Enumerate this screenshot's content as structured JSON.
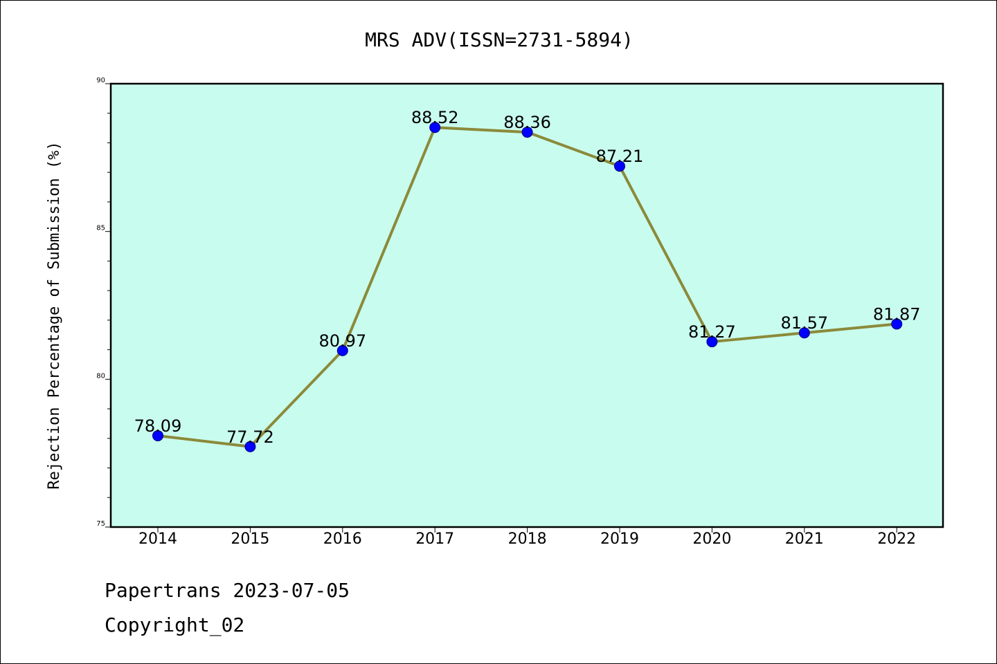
{
  "chart_data": {
    "type": "line",
    "title": "MRS ADV(ISSN=2731-5894)",
    "xlabel": "",
    "ylabel": "Rejection Percentage of Submission (%)",
    "categories": [
      "2014",
      "2015",
      "2016",
      "2017",
      "2018",
      "2019",
      "2020",
      "2021",
      "2022"
    ],
    "series": [
      {
        "values": [
          78.09,
          77.72,
          80.97,
          88.52,
          88.36,
          87.21,
          81.27,
          81.57,
          81.87
        ],
        "data_labels": [
          "78.09",
          "77.72",
          "80.97",
          "88.52",
          "88.36",
          "87.21",
          "81.27",
          "81.57",
          "81.87"
        ]
      }
    ],
    "ylim": [
      75,
      90
    ],
    "yticks": [
      "75",
      "80",
      "85",
      "90"
    ],
    "grid": false,
    "legend": "none",
    "colors": {
      "plot_background": "#c8fcee",
      "line": "#8b8a3a",
      "marker": "#0000ff"
    }
  },
  "footer": {
    "line1": "Papertrans 2023-07-05",
    "line2": "Copyright_02"
  }
}
